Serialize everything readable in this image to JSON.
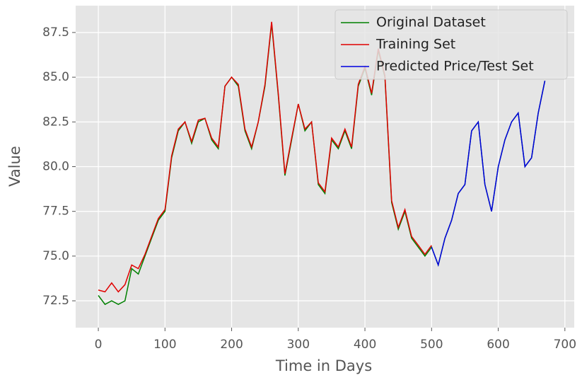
{
  "chart_data": {
    "type": "line",
    "x_label": "Time in Days",
    "y_label": "Value",
    "x": [
      0,
      10,
      20,
      30,
      40,
      50,
      60,
      70,
      80,
      90,
      100,
      110,
      120,
      130,
      140,
      150,
      160,
      170,
      180,
      190,
      200,
      210,
      220,
      230,
      240,
      250,
      260,
      270,
      280,
      290,
      300,
      310,
      320,
      330,
      340,
      350,
      360,
      370,
      380,
      390,
      400,
      410,
      420,
      430,
      440,
      450,
      460,
      470,
      480,
      490,
      500,
      510,
      520,
      530,
      540,
      550,
      560,
      570,
      580,
      590,
      600,
      610,
      620,
      630,
      640,
      650,
      660,
      670
    ],
    "series": [
      {
        "name": "Original Dataset",
        "color": "#008000",
        "values": [
          72.8,
          72.3,
          72.5,
          72.3,
          72.5,
          74.3,
          74.0,
          75.0,
          76.0,
          77.0,
          77.5,
          80.5,
          82.0,
          82.5,
          81.3,
          82.5,
          82.7,
          81.5,
          81.0,
          84.5,
          85.0,
          84.5,
          82.0,
          81.0,
          82.5,
          84.5,
          88.0,
          84.0,
          79.5,
          81.5,
          83.5,
          82.0,
          82.5,
          79.0,
          78.5,
          81.5,
          81.0,
          82.0,
          81.0,
          84.5,
          85.5,
          84.0,
          86.5,
          85.0,
          78.0,
          76.5,
          77.5,
          76.0,
          75.5,
          75.0,
          75.5,
          74.5,
          76.0,
          77.0,
          78.5,
          79.0,
          82.0,
          82.5,
          79.0,
          77.5,
          80.0,
          81.5,
          82.5,
          83.0,
          80.0,
          80.5,
          83.0,
          84.8
        ]
      },
      {
        "name": "Training Set",
        "color": "#e00000",
        "values": [
          73.1,
          73.0,
          73.5,
          73.0,
          73.4,
          74.5,
          74.3,
          75.1,
          76.1,
          77.1,
          77.6,
          80.6,
          82.1,
          82.5,
          81.4,
          82.6,
          82.7,
          81.6,
          81.1,
          84.5,
          85.0,
          84.6,
          82.1,
          81.1,
          82.5,
          84.6,
          88.1,
          84.1,
          79.6,
          81.6,
          83.5,
          82.1,
          82.5,
          79.1,
          78.6,
          81.6,
          81.1,
          82.1,
          81.1,
          84.6,
          85.6,
          84.1,
          86.6,
          85.1,
          78.1,
          76.6,
          77.6,
          76.1,
          75.6,
          75.1,
          75.6,
          null,
          null,
          null,
          null,
          null,
          null,
          null,
          null,
          null,
          null,
          null,
          null,
          null,
          null,
          null,
          null,
          null
        ]
      },
      {
        "name": "Predicted Price/Test Set",
        "color": "#0000e0",
        "values": [
          null,
          null,
          null,
          null,
          null,
          null,
          null,
          null,
          null,
          null,
          null,
          null,
          null,
          null,
          null,
          null,
          null,
          null,
          null,
          null,
          null,
          null,
          null,
          null,
          null,
          null,
          null,
          null,
          null,
          null,
          null,
          null,
          null,
          null,
          null,
          null,
          null,
          null,
          null,
          null,
          null,
          null,
          null,
          null,
          null,
          null,
          null,
          null,
          null,
          null,
          75.5,
          74.5,
          76.0,
          77.0,
          78.5,
          79.0,
          82.0,
          82.5,
          79.0,
          77.5,
          80.0,
          81.5,
          82.5,
          83.0,
          80.0,
          80.5,
          83.0,
          84.8
        ]
      }
    ],
    "xlim": [
      -34,
      714
    ],
    "ylim": [
      71.0,
      89.0
    ],
    "xticks": [
      0,
      100,
      200,
      300,
      400,
      500,
      600,
      700
    ],
    "yticks": [
      72.5,
      {
        "value": 75,
        "label": "75.0"
      },
      77.5,
      {
        "value": 80,
        "label": "80.0"
      },
      82.5,
      {
        "value": 85,
        "label": "85.0"
      },
      87.5
    ],
    "grid": true,
    "legend": "upper-right"
  }
}
